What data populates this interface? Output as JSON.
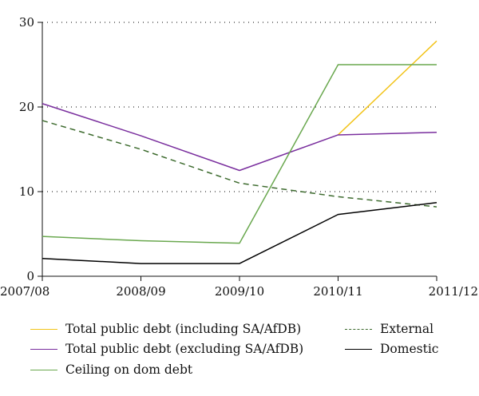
{
  "chart_data": {
    "type": "line",
    "title": "",
    "xlabel": "",
    "ylabel": "",
    "categories": [
      "2007/08",
      "2008/09",
      "2009/10",
      "2010/11",
      "2011/12"
    ],
    "ylim": [
      0,
      30
    ],
    "yticks": [
      0,
      10,
      20,
      30
    ],
    "grid": "horizontal-dotted",
    "legend_position": "bottom",
    "series": [
      {
        "name": "Total public debt (including SA/AfDB)",
        "color": "#f2c318",
        "style": "solid",
        "values": [
          null,
          null,
          null,
          16.7,
          27.8
        ]
      },
      {
        "name": "Total public debt (excluding SA/AfDB)",
        "color": "#7a2f9e",
        "style": "solid",
        "values": [
          20.4,
          16.6,
          12.5,
          16.7,
          17.0
        ]
      },
      {
        "name": "Ceiling on dom debt",
        "color": "#6aa84f",
        "style": "solid",
        "values": [
          4.7,
          4.2,
          3.9,
          25.0,
          25.0
        ]
      },
      {
        "name": "External",
        "color": "#3d6b2e",
        "style": "dashed",
        "values": [
          18.4,
          15.0,
          11.0,
          9.4,
          8.2
        ]
      },
      {
        "name": "Domestic",
        "color": "#000000",
        "style": "solid",
        "values": [
          2.1,
          1.5,
          1.5,
          7.3,
          8.7
        ]
      }
    ]
  }
}
